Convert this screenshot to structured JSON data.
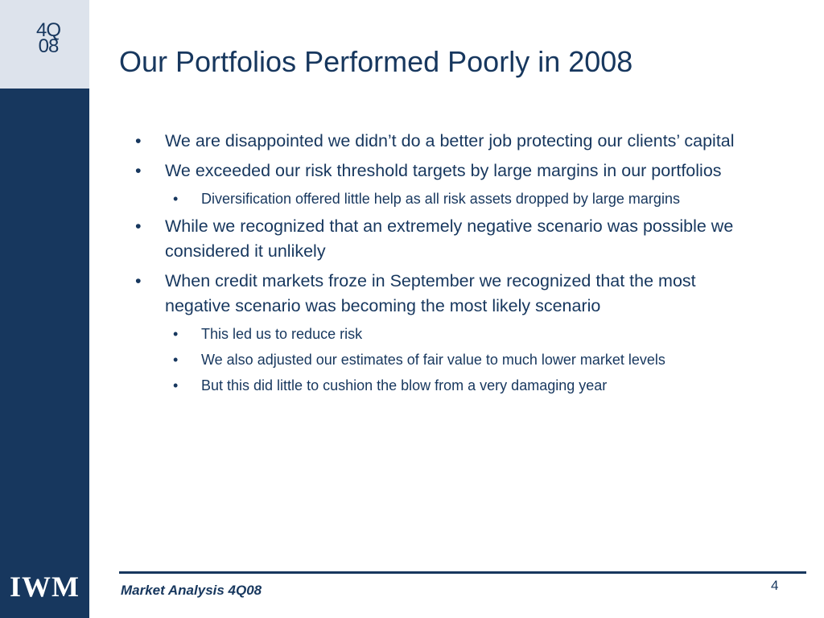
{
  "sidebar": {
    "quarter_line1": "4Q",
    "quarter_line2": "08",
    "logo": "IWM"
  },
  "slide": {
    "title": "Our Portfolios Performed Poorly in 2008",
    "bullet_symbol": "•",
    "bullets": [
      {
        "text": "We are disappointed we didn’t do a better job protecting our clients’ capital"
      },
      {
        "text": "We exceeded our risk threshold targets by large margins in our portfolios"
      },
      {
        "text": "Diversification offered little help as all risk assets dropped by large margins"
      },
      {
        "text": "While we recognized that an extremely negative scenario was possible we considered it unlikely"
      },
      {
        "text": "When credit markets froze in September we recognized that the most negative scenario was becoming the most likely scenario"
      },
      {
        "text": "This led us to reduce risk"
      },
      {
        "text": "We also adjusted our estimates of fair value to much lower market levels"
      },
      {
        "text": "But this did little to cushion the blow from a very damaging year"
      }
    ]
  },
  "footer": {
    "label": "Market Analysis 4Q08",
    "page_number": "4"
  },
  "colors": {
    "brand_navy": "#17375e",
    "sidebar_light": "#dde3ec",
    "background": "#ffffff"
  }
}
